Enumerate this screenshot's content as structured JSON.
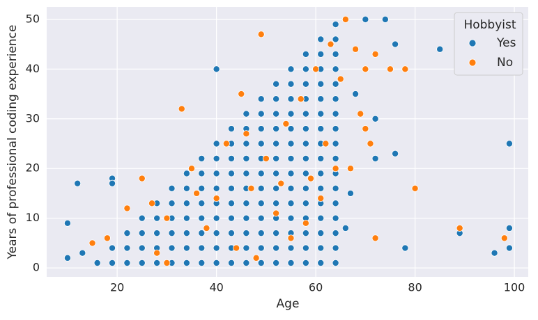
{
  "chart_data": {
    "type": "scatter",
    "x_label": "Age",
    "y_label": "Years of professional coding experience",
    "legend_title": "Hobbyist",
    "legend_position": "upper right",
    "grid": true,
    "xlim": [
      5.8,
      102.8
    ],
    "ylim": [
      -1.8,
      52.5
    ],
    "xticks": [
      20,
      40,
      60,
      80,
      100
    ],
    "yticks": [
      0,
      10,
      20,
      30,
      40,
      50
    ],
    "series": [
      {
        "name": "Yes",
        "color": "#1f77b4",
        "x": [
          16,
          19,
          19,
          22,
          22,
          22,
          25,
          25,
          25,
          25,
          28,
          28,
          28,
          28,
          28,
          31,
          31,
          31,
          31,
          31,
          31,
          34,
          34,
          34,
          34,
          34,
          34,
          34,
          37,
          37,
          37,
          37,
          37,
          37,
          37,
          37,
          40,
          40,
          40,
          40,
          40,
          40,
          40,
          40,
          40,
          43,
          43,
          43,
          43,
          43,
          43,
          43,
          43,
          43,
          43,
          46,
          46,
          46,
          46,
          46,
          46,
          46,
          46,
          46,
          46,
          46,
          49,
          49,
          49,
          49,
          49,
          49,
          49,
          49,
          49,
          49,
          49,
          49,
          52,
          52,
          52,
          52,
          52,
          52,
          52,
          52,
          52,
          52,
          52,
          52,
          52,
          55,
          55,
          55,
          55,
          55,
          55,
          55,
          55,
          55,
          55,
          55,
          55,
          55,
          55,
          58,
          58,
          58,
          58,
          58,
          58,
          58,
          58,
          58,
          58,
          58,
          58,
          58,
          58,
          58,
          61,
          61,
          61,
          61,
          61,
          61,
          61,
          61,
          61,
          61,
          61,
          61,
          61,
          61,
          61,
          61,
          64,
          64,
          64,
          64,
          64,
          64,
          64,
          64,
          64,
          64,
          64,
          64,
          64,
          64,
          64,
          64,
          64,
          10,
          10,
          12,
          13,
          19,
          19,
          40,
          85,
          99,
          99,
          99,
          96,
          78,
          89,
          76,
          76,
          70,
          74,
          72,
          72,
          68,
          66,
          67,
          70
        ],
        "values": [
          1,
          1,
          4,
          1,
          4,
          7,
          1,
          4,
          7,
          10,
          1,
          4,
          7,
          10,
          13,
          1,
          4,
          7,
          10,
          13,
          16,
          1,
          4,
          7,
          10,
          13,
          16,
          19,
          1,
          4,
          7,
          10,
          13,
          16,
          19,
          22,
          1,
          4,
          7,
          10,
          13,
          16,
          19,
          22,
          25,
          1,
          4,
          7,
          10,
          13,
          16,
          19,
          22,
          25,
          28,
          1,
          4,
          7,
          10,
          13,
          16,
          19,
          22,
          25,
          28,
          31,
          1,
          4,
          7,
          10,
          13,
          16,
          19,
          22,
          25,
          28,
          31,
          34,
          1,
          4,
          7,
          10,
          13,
          16,
          19,
          22,
          25,
          28,
          31,
          34,
          37,
          1,
          4,
          7,
          10,
          13,
          16,
          19,
          22,
          25,
          28,
          31,
          34,
          37,
          40,
          1,
          4,
          7,
          10,
          13,
          16,
          19,
          22,
          25,
          28,
          31,
          34,
          37,
          40,
          43,
          1,
          4,
          7,
          10,
          13,
          16,
          19,
          22,
          25,
          28,
          31,
          34,
          37,
          40,
          43,
          46,
          1,
          4,
          7,
          10,
          13,
          16,
          19,
          22,
          25,
          28,
          31,
          34,
          37,
          40,
          43,
          46,
          49,
          2,
          9,
          17,
          3,
          18,
          17,
          40,
          44,
          25,
          8,
          4,
          3,
          4,
          7,
          23,
          45,
          50,
          50,
          30,
          22,
          35,
          8,
          15,
          40
        ]
      },
      {
        "name": "No",
        "color": "#ff7f0e",
        "x": [
          15,
          18,
          22,
          25,
          28,
          30,
          33,
          35,
          38,
          40,
          42,
          44,
          45,
          47,
          49,
          50,
          52,
          54,
          55,
          57,
          59,
          60,
          62,
          63,
          65,
          66,
          68,
          69,
          70,
          70,
          71,
          72,
          72,
          75,
          78,
          80,
          89,
          98,
          48,
          53,
          46,
          58,
          61,
          36,
          30,
          27,
          64,
          67
        ],
        "values": [
          5,
          6,
          12,
          18,
          3,
          10,
          32,
          20,
          8,
          14,
          25,
          4,
          35,
          16,
          47,
          22,
          11,
          29,
          6,
          34,
          18,
          40,
          25,
          45,
          38,
          50,
          44,
          31,
          40,
          28,
          25,
          6,
          43,
          40,
          40,
          16,
          8,
          6,
          2,
          17,
          27,
          9,
          14,
          15,
          1,
          13,
          20,
          20
        ]
      }
    ]
  }
}
